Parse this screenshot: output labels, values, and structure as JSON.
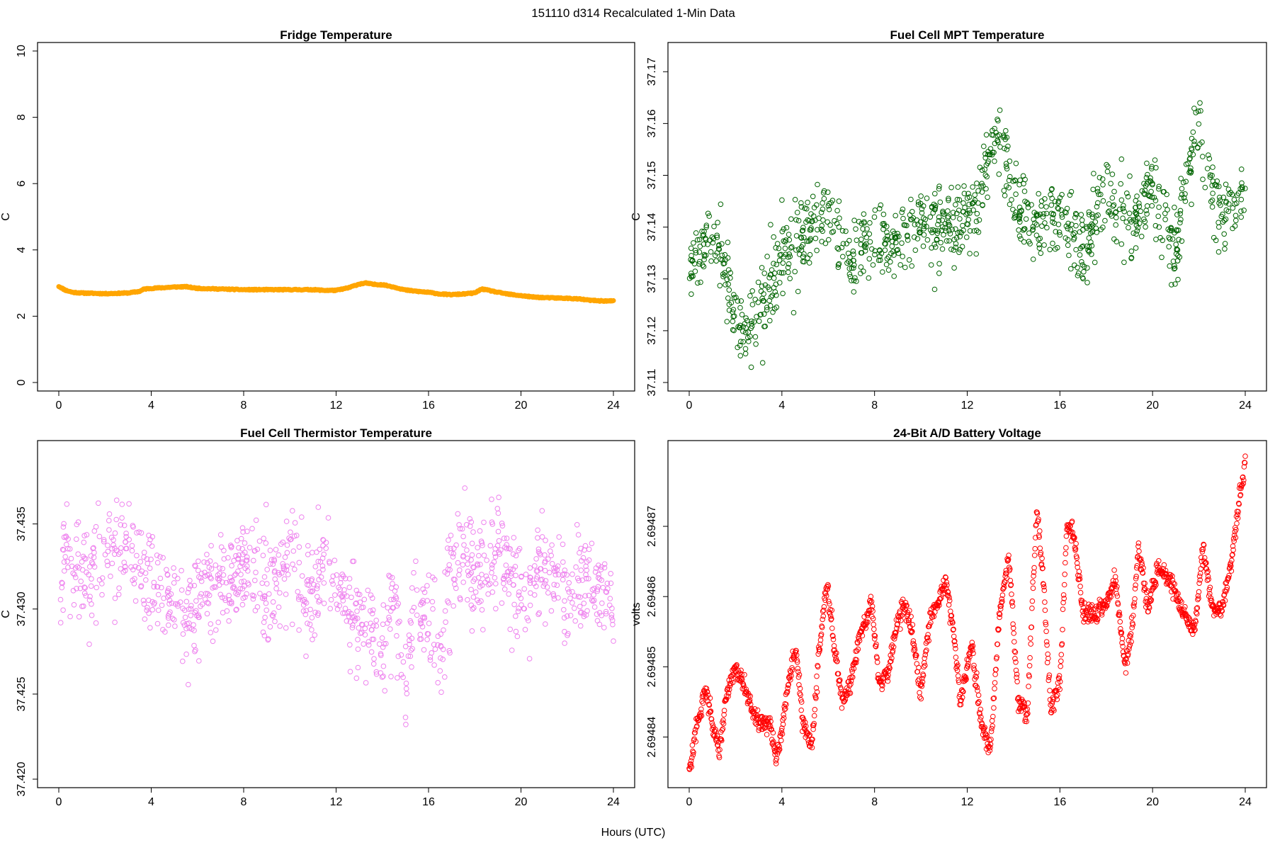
{
  "figure": {
    "title": "151110   d314   Recalculated 1-Min Data",
    "xlabel": "Hours (UTC)"
  },
  "chart_data": [
    {
      "type": "line",
      "title": "Fridge Temperature",
      "xlabel": "",
      "ylabel": "C",
      "color": "#FFA500",
      "marker": "thick-line",
      "xlim": [
        0,
        24
      ],
      "ylim": [
        0,
        10
      ],
      "xticks": [
        0,
        4,
        8,
        12,
        16,
        20,
        24
      ],
      "yticks": [
        0,
        2,
        4,
        6,
        8,
        10
      ],
      "ytick_labels": [
        "0",
        "2",
        "4",
        "6",
        "8",
        "10"
      ],
      "x": [
        0,
        0.3,
        0.6,
        1,
        2,
        3,
        3.5,
        3.7,
        4,
        4.5,
        5,
        5.5,
        6,
        7,
        8,
        9,
        10,
        11,
        11.5,
        12,
        12.5,
        13,
        13.3,
        13.6,
        14,
        14.5,
        15,
        15.5,
        16,
        16.5,
        17,
        17.5,
        18,
        18.3,
        18.6,
        19,
        19.5,
        20,
        20.5,
        21,
        21.5,
        22,
        22.5,
        23,
        23.5,
        24
      ],
      "y": [
        2.9,
        2.78,
        2.72,
        2.7,
        2.68,
        2.7,
        2.75,
        2.82,
        2.84,
        2.86,
        2.88,
        2.89,
        2.84,
        2.82,
        2.8,
        2.8,
        2.8,
        2.8,
        2.78,
        2.78,
        2.85,
        2.97,
        3.0,
        2.96,
        2.95,
        2.88,
        2.79,
        2.75,
        2.72,
        2.67,
        2.65,
        2.67,
        2.7,
        2.82,
        2.78,
        2.72,
        2.66,
        2.62,
        2.58,
        2.56,
        2.55,
        2.54,
        2.52,
        2.48,
        2.46,
        2.46
      ]
    },
    {
      "type": "scatter",
      "title": "Fuel Cell MPT Temperature",
      "xlabel": "",
      "ylabel": "C",
      "color": "#006400",
      "marker": "open-circle",
      "xlim": [
        0,
        24
      ],
      "ylim": [
        37.11,
        37.174
      ],
      "xticks": [
        0,
        4,
        8,
        12,
        16,
        20,
        24
      ],
      "yticks": [
        37.11,
        37.12,
        37.13,
        37.14,
        37.15,
        37.16,
        37.17
      ],
      "ytick_labels": [
        "37.11",
        "37.12",
        "37.13",
        "37.14",
        "37.15",
        "37.16",
        "37.17"
      ],
      "trend_x": [
        0,
        1,
        1.5,
        2,
        2.5,
        3,
        4,
        5,
        6,
        7,
        8,
        9,
        10,
        11,
        12,
        12.5,
        13,
        13.5,
        14,
        15,
        16,
        17,
        18,
        19,
        20,
        21,
        21.5,
        22,
        23,
        24
      ],
      "trend_y": [
        37.133,
        37.14,
        37.132,
        37.122,
        37.119,
        37.124,
        37.134,
        37.138,
        37.143,
        37.132,
        37.138,
        37.136,
        37.142,
        37.14,
        37.142,
        37.145,
        37.156,
        37.156,
        37.146,
        37.139,
        37.143,
        37.136,
        37.148,
        37.139,
        37.148,
        37.135,
        37.153,
        37.159,
        37.141,
        37.146
      ],
      "noise": 0.0065
    },
    {
      "type": "scatter",
      "title": "Fuel Cell Thermistor Temperature",
      "xlabel": "",
      "ylabel": "C",
      "color": "#EE82EE",
      "marker": "open-circle",
      "xlim": [
        0,
        24
      ],
      "ylim": [
        37.42,
        37.4394
      ],
      "xticks": [
        0,
        4,
        8,
        12,
        16,
        20,
        24
      ],
      "yticks": [
        37.42,
        37.425,
        37.43,
        37.435
      ],
      "ytick_labels": [
        "37.420",
        "37.425",
        "37.430",
        "37.435"
      ],
      "trend_x": [
        0,
        1,
        2,
        3,
        4,
        5,
        5.5,
        6,
        7,
        8,
        9,
        10,
        11,
        11.5,
        12,
        13,
        14,
        14.5,
        15,
        15.5,
        16,
        16.5,
        17,
        18,
        19,
        20,
        21,
        22,
        23,
        24
      ],
      "trend_y": [
        37.433,
        37.432,
        37.433,
        37.434,
        37.431,
        37.431,
        37.429,
        37.431,
        37.431,
        37.433,
        37.431,
        37.433,
        37.43,
        37.434,
        37.431,
        37.429,
        37.428,
        37.431,
        37.425,
        37.43,
        37.429,
        37.427,
        37.433,
        37.432,
        37.433,
        37.431,
        37.432,
        37.431,
        37.432,
        37.43
      ],
      "noise": 0.0028
    },
    {
      "type": "scatter",
      "title": "24-Bit A/D Battery Voltage",
      "xlabel": "",
      "ylabel": "volts",
      "color": "#FF0000",
      "marker": "open-circle",
      "xlim": [
        0,
        24
      ],
      "ylim": [
        2.694834,
        2.694881
      ],
      "xticks": [
        0,
        4,
        8,
        12,
        16,
        20,
        24
      ],
      "yticks": [
        2.69484,
        2.69485,
        2.69486,
        2.69487
      ],
      "ytick_labels": [
        "2.69484",
        "2.69485",
        "2.69486",
        "2.69487"
      ],
      "x": [
        0,
        0.3,
        0.7,
        1.0,
        1.3,
        1.6,
        2.0,
        2.3,
        2.7,
        3.1,
        3.5,
        3.75,
        4.0,
        4.3,
        4.6,
        4.9,
        5.3,
        5.6,
        5.95,
        6.3,
        6.6,
        7.0,
        7.4,
        7.85,
        8.2,
        8.6,
        9.0,
        9.3,
        9.6,
        10.0,
        10.4,
        10.7,
        11.1,
        11.4,
        11.7,
        12.2,
        12.6,
        13.0,
        13.4,
        13.8,
        14.2,
        14.6,
        15.0,
        15.3,
        15.6,
        16.0,
        16.3,
        16.6,
        17.0,
        17.5,
        18.0,
        18.4,
        18.8,
        19.1,
        19.4,
        19.8,
        20.2,
        20.8,
        21.3,
        21.8,
        22.2,
        22.6,
        23.0,
        23.4,
        23.7,
        24.0
      ],
      "y": [
        2.694835,
        2.694841,
        2.694847,
        2.694842,
        2.694838,
        2.694846,
        2.69485,
        2.694848,
        2.694844,
        2.694842,
        2.694842,
        2.694837,
        2.694841,
        2.694848,
        2.694853,
        2.694842,
        2.694839,
        2.694852,
        2.694862,
        2.694852,
        2.694845,
        2.694848,
        2.694855,
        2.694859,
        2.694848,
        2.694849,
        2.694857,
        2.694859,
        2.694855,
        2.694846,
        2.694857,
        2.694859,
        2.694862,
        2.694855,
        2.694845,
        2.694853,
        2.694842,
        2.694838,
        2.694858,
        2.694866,
        2.694845,
        2.694843,
        2.694873,
        2.694862,
        2.694844,
        2.694848,
        2.69487,
        2.694869,
        2.694858,
        2.694857,
        2.694859,
        2.694862,
        2.69485,
        2.694855,
        2.694867,
        2.694858,
        2.694864,
        2.694862,
        2.694858,
        2.694855,
        2.694867,
        2.694858,
        2.694858,
        2.694865,
        2.694873,
        2.694879
      ],
      "noise": 7e-07
    }
  ]
}
